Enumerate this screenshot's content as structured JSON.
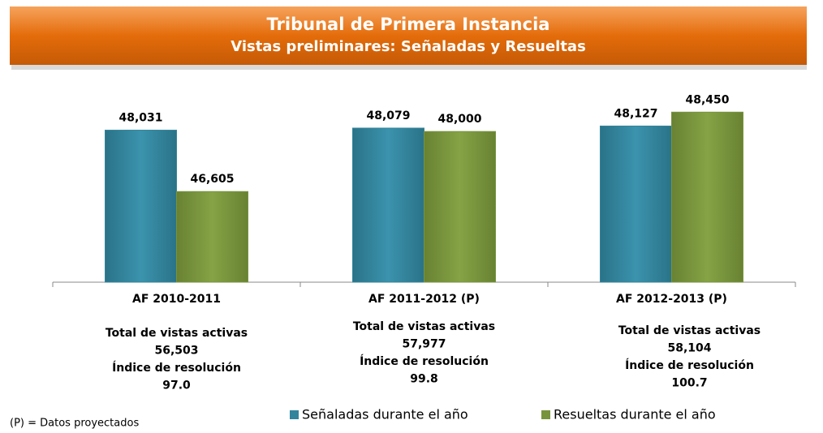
{
  "chart_data": {
    "type": "bar",
    "title": "Tribunal de Primera Instancia",
    "subtitle": "Vistas preliminares: Señaladas y Resueltas",
    "categories": [
      "AF 2010-2011",
      "AF 2011-2012 (P)",
      "AF 2012-2013 (P)"
    ],
    "series": [
      {
        "name": "Señaladas durante el año",
        "color": "#31849b",
        "values": [
          48031,
          48079,
          48127
        ],
        "value_labels": [
          "48,031",
          "48,079",
          "48,127"
        ]
      },
      {
        "name": "Resueltas durante el año",
        "color": "#77933c",
        "values": [
          46605,
          48000,
          48450
        ],
        "value_labels": [
          "46,605",
          "48,000",
          "48,450"
        ]
      }
    ],
    "ylim": [
      44500,
      50000
    ],
    "notes": [
      [
        "Total de vistas activas",
        "56,503",
        "Índice de resolución",
        "97.0"
      ],
      [
        "Total de vistas activas",
        "57,977",
        "Índice de resolución",
        "99.8"
      ],
      [
        "Total de vistas activas",
        "58,104",
        "Índice de resolución",
        "100.7"
      ]
    ],
    "footnote": "(P) = Datos proyectados"
  }
}
